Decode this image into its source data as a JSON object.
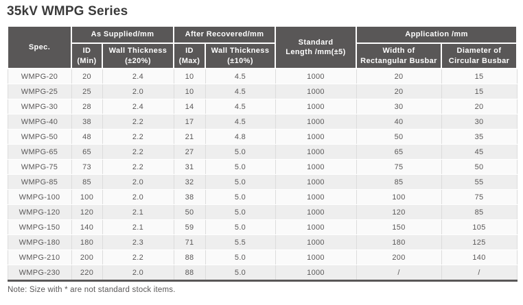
{
  "title": "35kV WMPG Series",
  "note": "Note: Size with * are not standard stock items.",
  "colors": {
    "header_bg": "#595757",
    "header_text": "#ffffff",
    "row_light_bg": "#fafafa",
    "row_dark_bg": "#eeeeee",
    "body_text": "#595757",
    "title_text": "#3a3a3a",
    "cell_divider": "#dcdcdc",
    "bottom_rule": "#595757"
  },
  "table": {
    "header": {
      "spec": "Spec.",
      "as_supplied": "As Supplied/mm",
      "after_recovered": "After Recovered/mm",
      "standard_length": "Standard\nLength /mm(±5)",
      "application": "Application /mm",
      "sub_headers": [
        "ID\n(Min)",
        "Wall Thickness\n(±20%)",
        "ID\n(Max)",
        "Wall Thickness\n(±10%)",
        "Width of\nRectangular Busbar",
        "Diameter of\nCircular Busbar"
      ]
    },
    "rows": [
      [
        "WMPG-20",
        "20",
        "2.4",
        "10",
        "4.5",
        "1000",
        "20",
        "15"
      ],
      [
        "WMPG-25",
        "25",
        "2.0",
        "10",
        "4.5",
        "1000",
        "20",
        "15"
      ],
      [
        "WMPG-30",
        "28",
        "2.4",
        "14",
        "4.5",
        "1000",
        "30",
        "20"
      ],
      [
        "WMPG-40",
        "38",
        "2.2",
        "17",
        "4.5",
        "1000",
        "40",
        "30"
      ],
      [
        "WMPG-50",
        "48",
        "2.2",
        "21",
        "4.8",
        "1000",
        "50",
        "35"
      ],
      [
        "WMPG-65",
        "65",
        "2.2",
        "27",
        "5.0",
        "1000",
        "65",
        "45"
      ],
      [
        "WMPG-75",
        "73",
        "2.2",
        "31",
        "5.0",
        "1000",
        "75",
        "50"
      ],
      [
        "WMPG-85",
        "85",
        "2.0",
        "32",
        "5.0",
        "1000",
        "85",
        "55"
      ],
      [
        "WMPG-100",
        "100",
        "2.0",
        "38",
        "5.0",
        "1000",
        "100",
        "75"
      ],
      [
        "WMPG-120",
        "120",
        "2.1",
        "50",
        "5.0",
        "1000",
        "120",
        "85"
      ],
      [
        "WMPG-150",
        "140",
        "2.1",
        "59",
        "5.0",
        "1000",
        "150",
        "105"
      ],
      [
        "WMPG-180",
        "180",
        "2.3",
        "71",
        "5.5",
        "1000",
        "180",
        "125"
      ],
      [
        "WMPG-210",
        "200",
        "2.2",
        "88",
        "5.0",
        "1000",
        "200",
        "140"
      ],
      [
        "WMPG-230",
        "220",
        "2.0",
        "88",
        "5.0",
        "1000",
        "/",
        "/"
      ]
    ]
  }
}
